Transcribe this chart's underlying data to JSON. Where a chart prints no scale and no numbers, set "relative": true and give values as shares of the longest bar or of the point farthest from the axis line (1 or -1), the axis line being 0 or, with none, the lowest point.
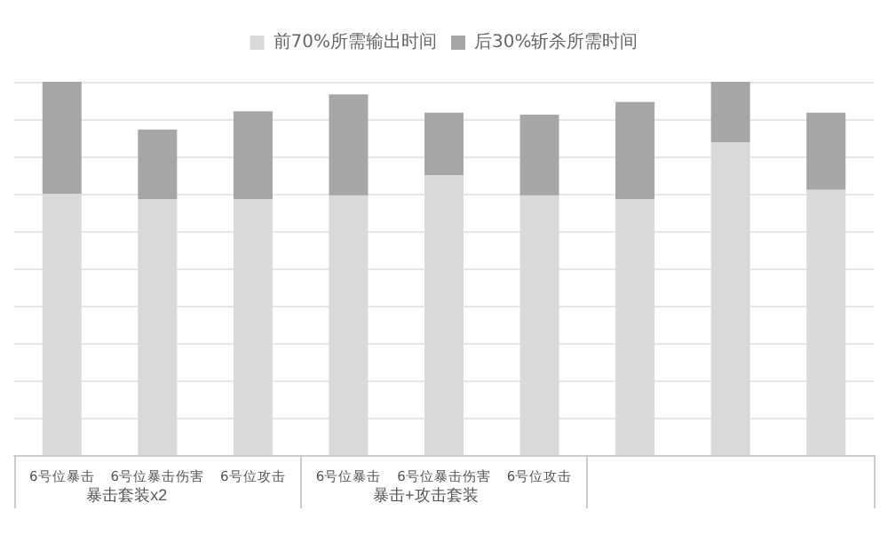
{
  "chart_data": {
    "type": "bar",
    "stacked": true,
    "relative": true,
    "grid": "y",
    "legend": "top",
    "categories": [
      "6号位暴击",
      "6号位暴击伤害",
      "6号位攻击",
      "6号位暴击",
      "6号位暴击伤害",
      "6号位攻击",
      null,
      null,
      null
    ],
    "series": [
      {
        "name": "前70%所需输出时间",
        "color": "#d9d9d9",
        "values": [
          0.7,
          0.686,
          0.686,
          0.696,
          0.75,
          0.696,
          0.686,
          0.838,
          0.711
        ]
      },
      {
        "name": "后30%斩杀所需时间",
        "color": "#a6a6a6",
        "values": [
          0.3,
          0.186,
          0.235,
          0.27,
          0.167,
          0.216,
          0.26,
          0.162,
          0.206
        ]
      }
    ],
    "annotations": [
      "暴击套装x2",
      "暴击+攻击套装"
    ]
  }
}
